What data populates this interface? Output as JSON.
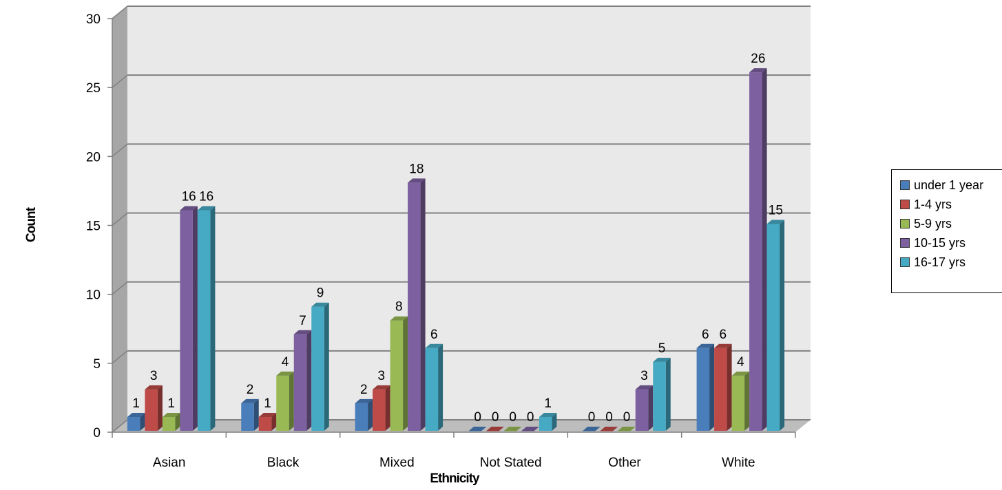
{
  "chart_data": {
    "type": "bar",
    "xlabel": "Ethnicity",
    "ylabel": "Count",
    "ylim": [
      0,
      30
    ],
    "yticks": [
      0,
      5,
      10,
      15,
      20,
      25,
      30
    ],
    "grid": true,
    "legend_position": "right",
    "categories": [
      "Asian",
      "Black",
      "Mixed",
      "Not Stated",
      "Other",
      "White"
    ],
    "series": [
      {
        "name": "under 1 year",
        "color": "#4a7ebb",
        "values": [
          1,
          2,
          2,
          0,
          0,
          6
        ]
      },
      {
        "name": "1-4 yrs",
        "color": "#be4b48",
        "values": [
          3,
          1,
          3,
          0,
          0,
          6
        ]
      },
      {
        "name": "5-9 yrs",
        "color": "#98b954",
        "values": [
          1,
          4,
          8,
          0,
          0,
          4
        ]
      },
      {
        "name": "10-15 yrs",
        "color": "#7d60a0",
        "values": [
          16,
          7,
          18,
          0,
          3,
          26
        ]
      },
      {
        "name": "16-17 yrs",
        "color": "#46aac5",
        "values": [
          16,
          9,
          6,
          1,
          5,
          15
        ]
      }
    ]
  }
}
